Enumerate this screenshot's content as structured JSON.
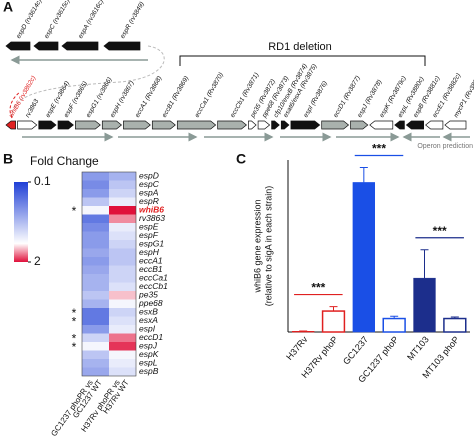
{
  "panel_a": {
    "label": "A",
    "top_genes": [
      {
        "label": "espD (rv3614c)",
        "color": "#111111"
      },
      {
        "label": "espC (rv3615c)",
        "color": "#111111"
      },
      {
        "label": "espA (rv3616c)",
        "color": "#111111"
      },
      {
        "label": "espR (rv3849)",
        "color": "#111111"
      }
    ],
    "genes": [
      {
        "label": "whiB6 (rv3862c)",
        "color": "#e02020"
      },
      {
        "label": "rv3863",
        "color": "#ffffff"
      },
      {
        "label": "espE (rv3864)",
        "color": "#111111"
      },
      {
        "label": "espF (rv3865)",
        "color": "#111111"
      },
      {
        "label": "espG1 (rv3866)",
        "color": "#a9b1ad"
      },
      {
        "label": "espH (rv3867)",
        "color": "#a9b1ad"
      },
      {
        "label": "eccA1 (Rv3868)",
        "color": "#a9b1ad"
      },
      {
        "label": "eccB1 (Rv3869)",
        "color": "#a9b1ad"
      },
      {
        "label": "eccCa1 (Rv3870)",
        "color": "#a9b1ad"
      },
      {
        "label": "eccCb1 (Rv3871)",
        "color": "#a9b1ad"
      },
      {
        "label": "pe35 (Rv3872)",
        "color": "#ffffff"
      },
      {
        "label": "ppe68 (Rv3873)",
        "color": "#ffffff"
      },
      {
        "label": "cfp10/esxB (Rv3874)",
        "color": "#111111"
      },
      {
        "label": "esat6/esxA (Rv3875)",
        "color": "#111111"
      },
      {
        "label": "espI (Rv3876)",
        "color": "#111111"
      },
      {
        "label": "eccD1 (Rv3877)",
        "color": "#a9b1ad"
      },
      {
        "label": "espJ (Rv3878)",
        "color": "#a9b1ad"
      },
      {
        "label": "espK (Rv3879c)",
        "color": "#ffffff"
      },
      {
        "label": "espL (Rv3880c)",
        "color": "#111111"
      },
      {
        "label": "espB (Rv3881c)",
        "color": "#111111"
      },
      {
        "label": "eccE1 (Rv3882c)",
        "color": "#ffffff"
      },
      {
        "label": "mycP1 (Rv3883c)",
        "color": "#ffffff"
      }
    ],
    "region_label": "RD1 deletion",
    "operon_label": "Operon prediction"
  },
  "chart_data": [
    {
      "type": "heatmap",
      "panel_label": "B",
      "legend_title": "Fold Change",
      "colorbar_ticks": [
        0.1,
        2
      ],
      "colors": [
        "#1f3fd6",
        "#e0103a"
      ],
      "rows": [
        "espD",
        "espC",
        "espA",
        "espR",
        "whiB6",
        "rv3863",
        "espE",
        "espF",
        "espG1",
        "espH",
        "eccA1",
        "eccB1",
        "eccCa1",
        "eccCb1",
        "pe35",
        "ppe68",
        "esxB",
        "esxA",
        "espI",
        "eccD1",
        "espJ",
        "espK",
        "espL",
        "espB"
      ],
      "row_marks": [
        null,
        null,
        null,
        null,
        "*",
        null,
        null,
        null,
        null,
        null,
        null,
        null,
        null,
        null,
        null,
        null,
        "*",
        "*",
        null,
        "*",
        "*",
        null,
        null,
        null
      ],
      "columns": [
        [
          "GC1237 phoPR vs",
          "GC1237 WT"
        ],
        [
          "H37Rv phoPR vs",
          "H37Rv WT"
        ]
      ],
      "values": [
        [
          0.3,
          0.25,
          0.3,
          0.5,
          0.9,
          0.2,
          0.25,
          0.3,
          0.3,
          0.35,
          0.3,
          0.35,
          0.4,
          0.4,
          0.5,
          0.4,
          0.2,
          0.2,
          0.3,
          0.6,
          0.9,
          0.5,
          0.4,
          0.35
        ],
        [
          0.4,
          0.5,
          0.6,
          0.8,
          2,
          1.4,
          0.8,
          0.7,
          0.6,
          0.5,
          0.5,
          0.6,
          0.6,
          0.7,
          1.2,
          0.9,
          0.6,
          0.7,
          0.8,
          1.5,
          1.8,
          0.9,
          0.8,
          0.7
        ]
      ]
    },
    {
      "type": "bar",
      "panel_label": "C",
      "y_label": [
        "whiB6 gene expression",
        "(relative to sigA in each strain)"
      ],
      "categories": [
        "H37Rv",
        "H37Rv phoP",
        "GC1237",
        "GC1237 phoP",
        "MT103",
        "MT103 phoP"
      ],
      "values": [
        0.005,
        0.14,
        1.0,
        0.09,
        0.36,
        0.09
      ],
      "errors": [
        0.002,
        0.03,
        0.1,
        0.015,
        0.19,
        0.01
      ],
      "colors": [
        "#e02020",
        "#e02020",
        "#1a4fe6",
        "#1a4fe6",
        "#1c2e8c",
        "#1c2e8c"
      ],
      "fill_styles": [
        "solid",
        "hollow",
        "solid",
        "hollow",
        "solid",
        "hollow"
      ],
      "significance": [
        "***",
        "***",
        "***"
      ],
      "ylim": [
        0,
        1.15
      ]
    }
  ]
}
